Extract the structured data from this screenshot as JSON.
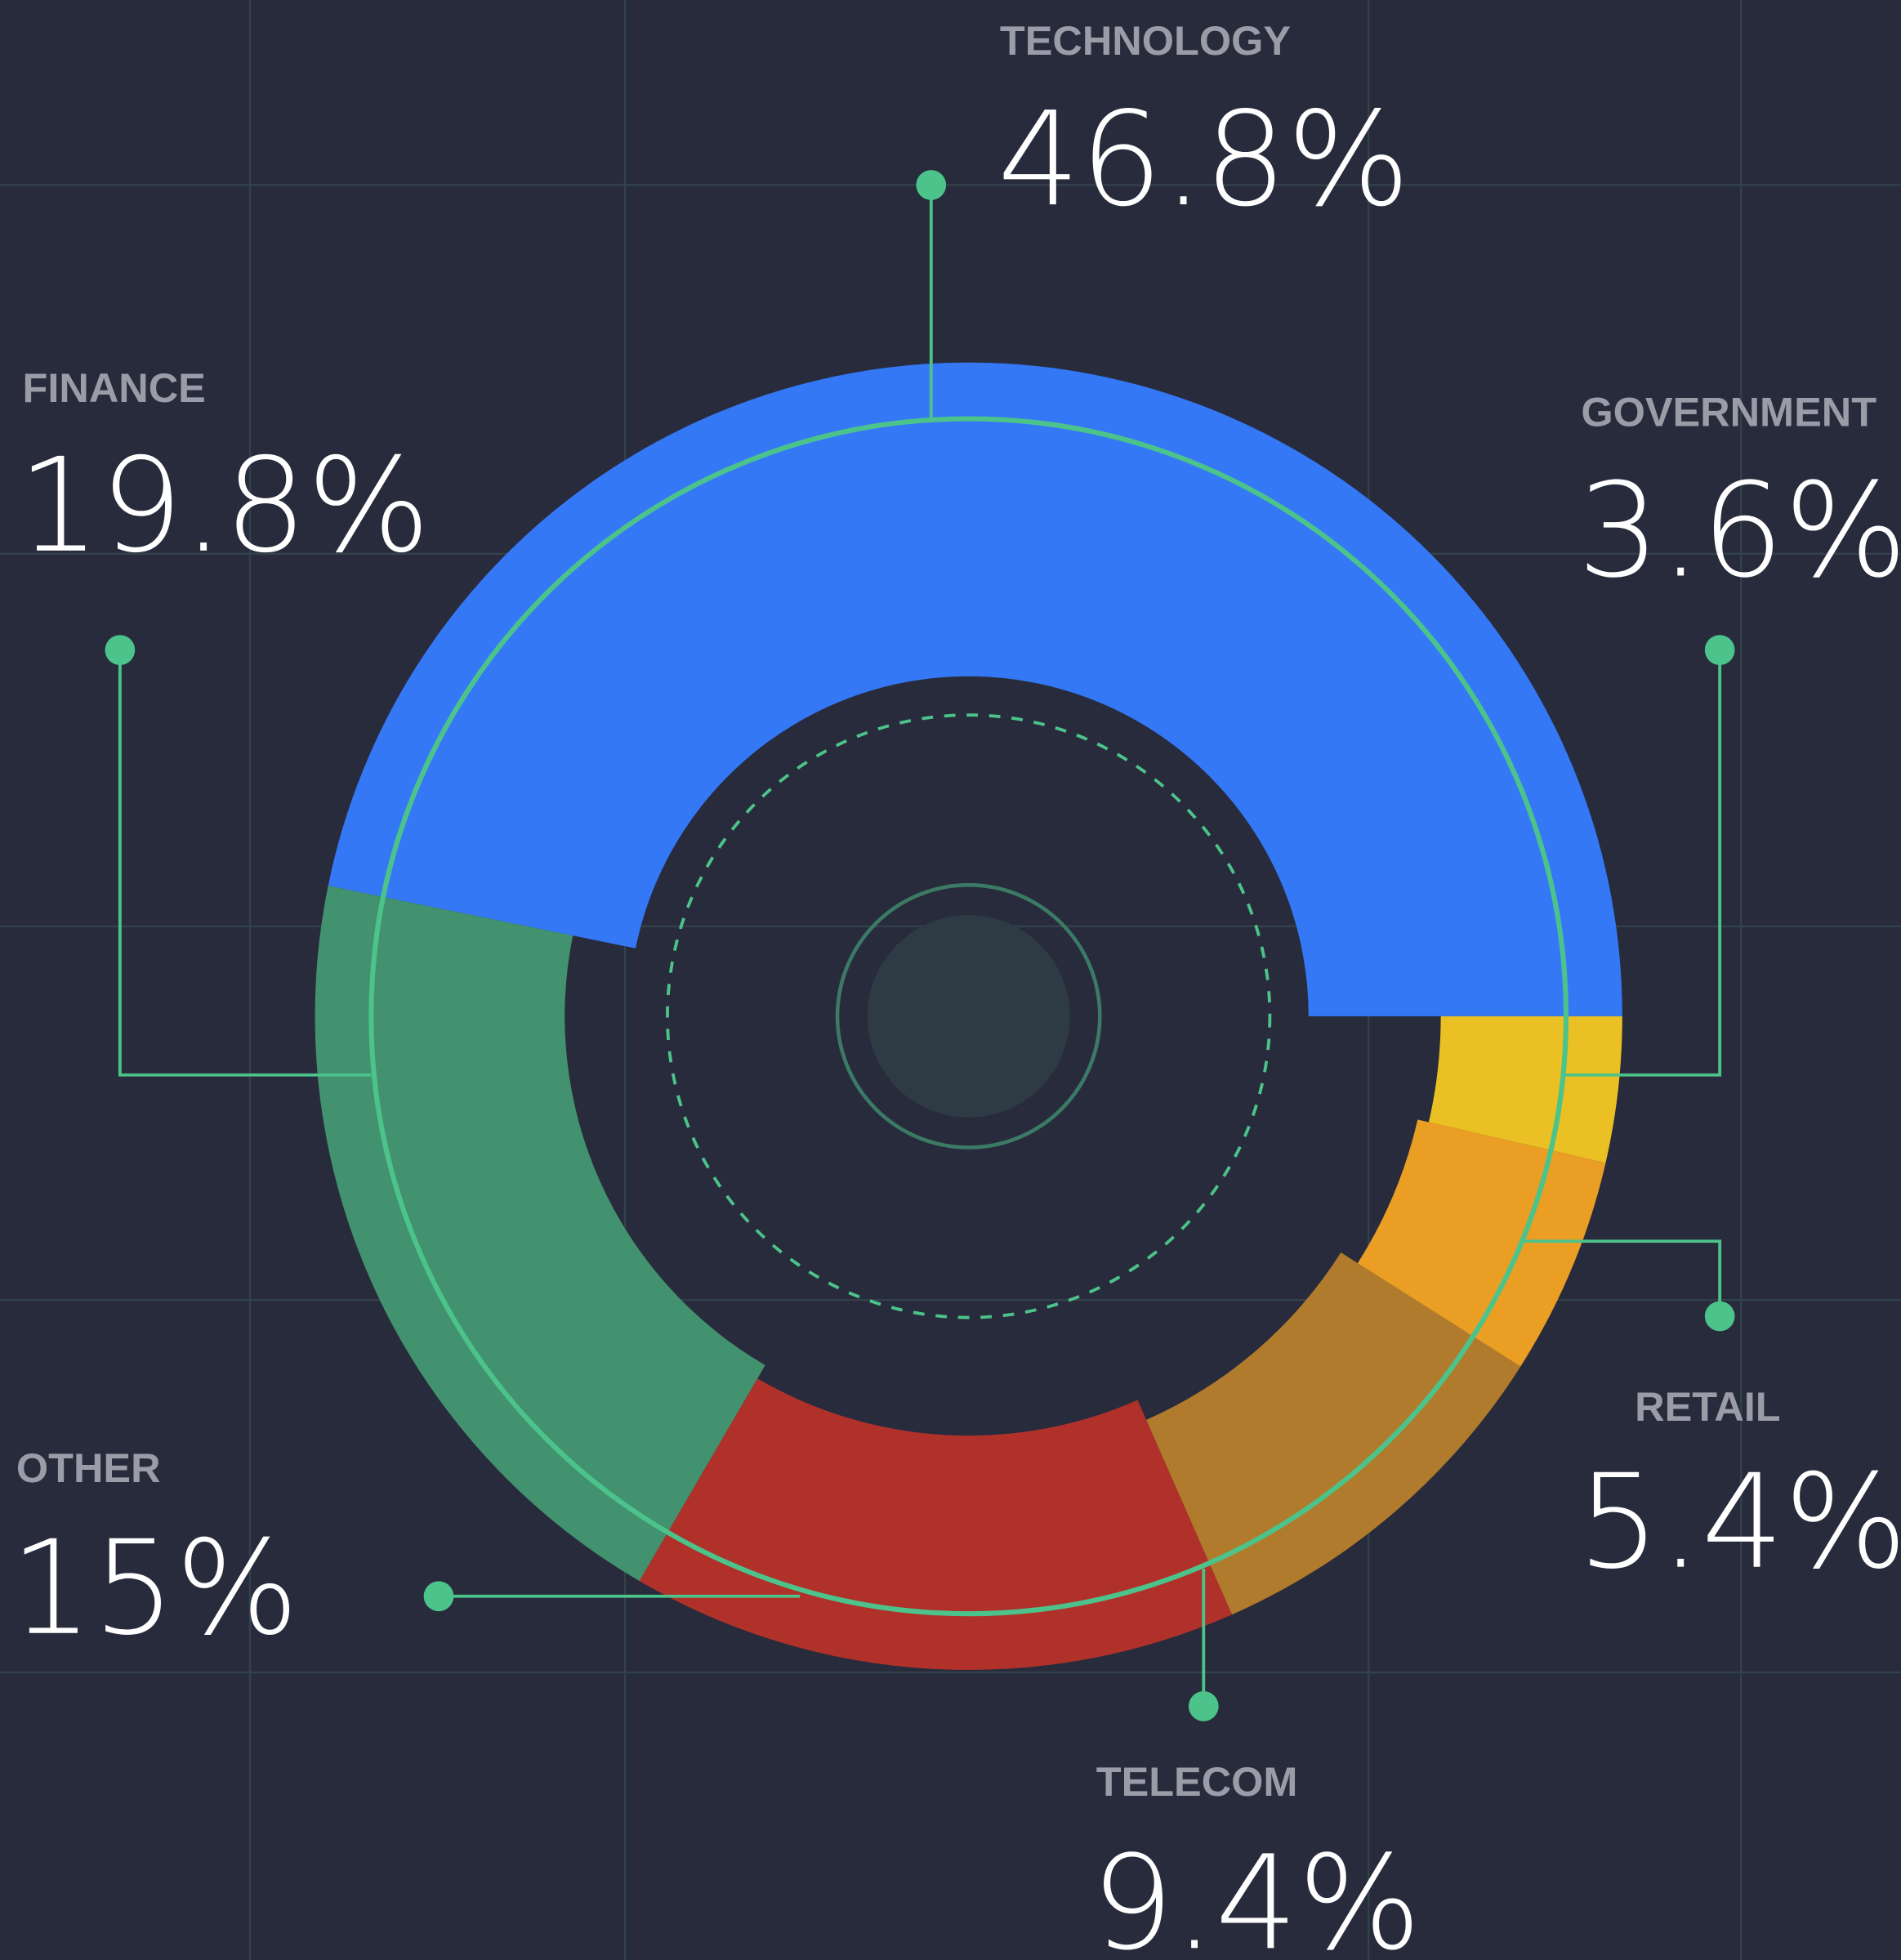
{
  "chart_data": {
    "type": "pie",
    "categories": [
      "TECHNOLOGY",
      "FINANCE",
      "OTHER",
      "TELECOM",
      "RETAIL",
      "GOVERNMENT"
    ],
    "values": [
      46.8,
      19.8,
      15,
      9.4,
      5.4,
      3.6
    ],
    "value_labels": [
      "46.8%",
      "19.8%",
      "15%",
      "9.4%",
      "5.4%",
      "3.6%"
    ],
    "colors": [
      "#3478f6",
      "#42916f",
      "#b0312a",
      "#b07b2c",
      "#eb9e24",
      "#ebc024"
    ]
  }
}
